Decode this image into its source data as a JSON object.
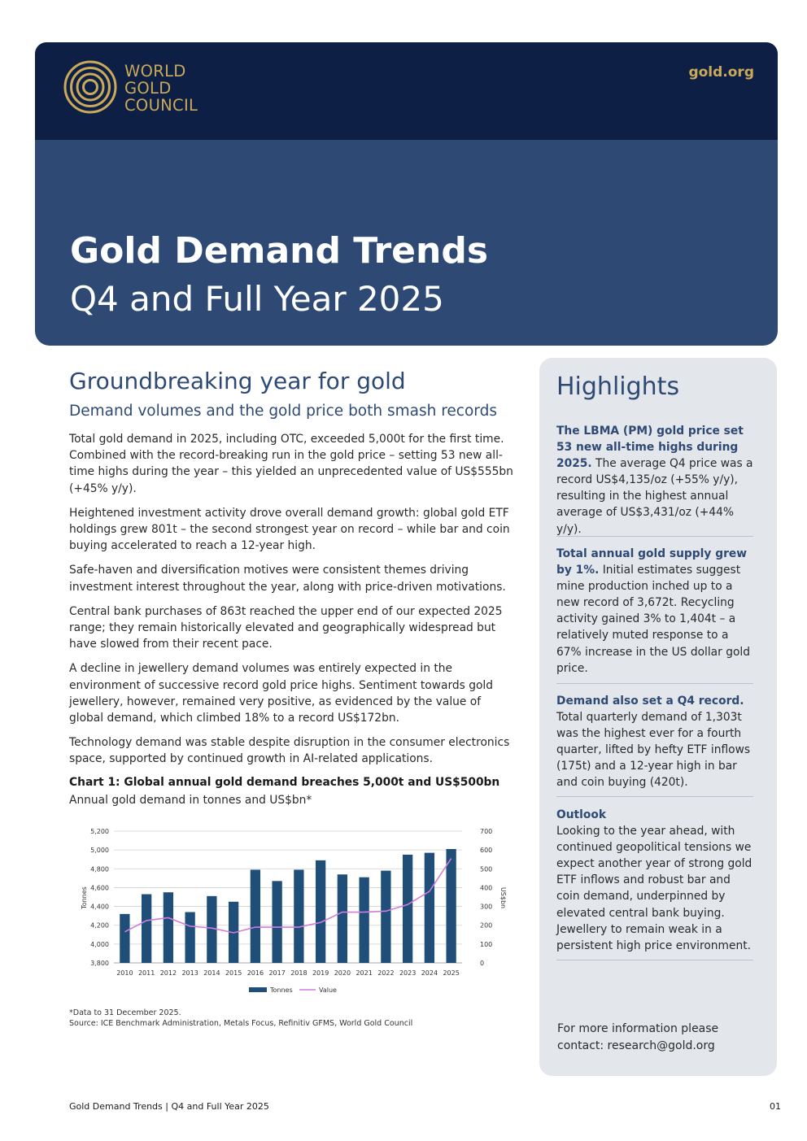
{
  "header": {
    "logo_lines": [
      "WORLD",
      "GOLD",
      "COUNCIL"
    ],
    "site": "gold.org",
    "title": "Gold Demand Trends",
    "subtitle": "Q4 and Full Year 2025",
    "brand_color": "#c9a95a",
    "navy": "#0d1f44",
    "blue": "#2e4a74"
  },
  "main": {
    "title": "Groundbreaking year for gold",
    "subtitle": "Demand volumes and the gold price both smash records",
    "paragraphs": [
      "Total gold demand in 2025, including OTC, exceeded 5,000t for the first time. Combined with the record-breaking run in the gold price – setting 53 new all-time highs during the year – this yielded an unprecedented value of US$555bn (+45% y/y).",
      "Heightened investment activity drove overall demand growth: global gold ETF holdings grew 801t – the second strongest year on record – while bar and coin buying accelerated to reach a 12-year high.",
      "Safe-haven and diversification motives were consistent themes driving investment interest throughout the year, along with price-driven motivations.",
      "Central bank purchases of 863t reached the upper end of our expected 2025 range; they remain historically elevated and geographically widespread but have slowed from their recent pace.",
      "A decline in jewellery demand volumes was entirely expected in the environment of successive record gold price highs. Sentiment towards gold jewellery, however, remained very positive, as evidenced by the value of global demand, which climbed 18% to a record US$172bn.",
      "Technology demand was stable despite disruption in the consumer electronics space, supported by continued growth in AI-related applications."
    ],
    "chart_heading": "Chart 1: Global annual gold demand breaches 5,000t and US$500bn",
    "chart_subheading": "Annual gold demand in tonnes and US$bn*",
    "note": "*Data to 31 December 2025.",
    "source": "Source: ICE Benchmark Administration, Metals Focus, Refinitiv GFMS, World Gold Council"
  },
  "chart_data": {
    "type": "bar",
    "categories": [
      "2010",
      "2011",
      "2012",
      "2013",
      "2014",
      "2015",
      "2016",
      "2017",
      "2018",
      "2019",
      "2020",
      "2021",
      "2022",
      "2023",
      "2024",
      "2025"
    ],
    "series": [
      {
        "name": "Tonnes",
        "type": "bar",
        "axis": "left",
        "color": "#1f4e79",
        "values": [
          4320,
          4530,
          4550,
          4340,
          4510,
          4450,
          4790,
          4670,
          4790,
          4890,
          4740,
          4710,
          4780,
          4950,
          4970,
          5010
        ]
      },
      {
        "name": "Value",
        "type": "line",
        "axis": "right",
        "color": "#d17de0",
        "values": [
          165,
          225,
          240,
          195,
          185,
          160,
          190,
          190,
          190,
          215,
          270,
          270,
          275,
          310,
          380,
          555
        ]
      }
    ],
    "ylabel_left": "Tonnes",
    "ylabel_right": "US$bn",
    "ylim_left": [
      3800,
      5200
    ],
    "yticks_left": [
      "5,200",
      "5,000",
      "4,800",
      "4,600",
      "4,400",
      "4,200",
      "4,000",
      "3,800"
    ],
    "ylim_right": [
      0,
      700
    ],
    "yticks_right": [
      "700",
      "600",
      "500",
      "400",
      "300",
      "200",
      "100",
      "0"
    ],
    "grid": true,
    "legend_position": "bottom"
  },
  "highlights": {
    "title": "Highlights",
    "items": [
      {
        "lead": "The LBMA (PM) gold price set 53 new all-time highs during 2025.",
        "body": "The average Q4 price was a record US$4,135/oz (+55% y/y), resulting in the highest annual average of US$3,431/oz (+44% y/y)."
      },
      {
        "lead": "Total annual gold supply grew by 1%.",
        "body": "Initial estimates suggest mine production inched up to a new record of 3,672t. Recycling activity gained 3% to 1,404t – a relatively muted response to a 67% increase in the US dollar gold price."
      },
      {
        "lead": "Demand also set a Q4 record.",
        "body": "Total quarterly demand of 1,303t was the highest ever for a fourth quarter, lifted by hefty ETF inflows (175t) and a 12-year high in bar and coin buying (420t)."
      },
      {
        "lead": "Outlook",
        "body": "Looking to the year ahead, with continued geopolitical tensions we expect another year of strong gold ETF inflows and robust bar and coin demand, underpinned by elevated central bank buying. Jewellery to remain weak in a persistent high price environment."
      }
    ],
    "contact": "For more information please contact: research@gold.org"
  },
  "footer": {
    "left": "Gold Demand Trends | Q4 and Full Year 2025",
    "page": "01"
  }
}
